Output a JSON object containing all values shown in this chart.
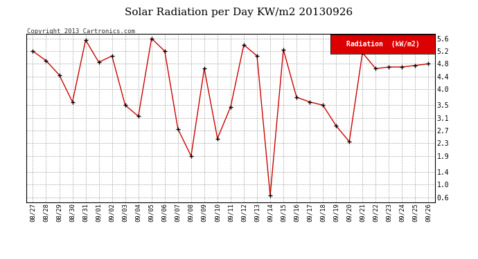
{
  "title": "Solar Radiation per Day KW/m2 20130926",
  "copyright": "Copyright 2013 Cartronics.com",
  "legend_label": "Radiation  (kW/m2)",
  "dates": [
    "08/27",
    "08/28",
    "08/29",
    "08/30",
    "08/31",
    "09/01",
    "09/02",
    "09/03",
    "09/04",
    "09/05",
    "09/06",
    "09/07",
    "09/08",
    "09/09",
    "09/10",
    "09/11",
    "09/12",
    "09/13",
    "09/14",
    "09/15",
    "09/16",
    "09/17",
    "09/18",
    "09/19",
    "09/20",
    "09/21",
    "09/22",
    "09/23",
    "09/24",
    "09/25",
    "09/26"
  ],
  "values": [
    5.2,
    4.9,
    4.45,
    3.6,
    5.55,
    4.85,
    5.05,
    3.5,
    3.15,
    5.6,
    5.2,
    2.75,
    1.9,
    4.65,
    2.45,
    3.45,
    5.4,
    5.05,
    0.65,
    5.25,
    3.75,
    3.6,
    3.5,
    2.85,
    2.35,
    5.15,
    4.65,
    4.7,
    4.7,
    4.75,
    4.8
  ],
  "line_color": "#cc0000",
  "marker_color": "#000000",
  "bg_color": "#ffffff",
  "plot_bg_color": "#ffffff",
  "grid_color": "#aaaaaa",
  "legend_bg": "#dd0000",
  "legend_text_color": "#ffffff",
  "ylim_min": 0.45,
  "ylim_max": 5.75,
  "yticks": [
    0.6,
    1.0,
    1.4,
    1.9,
    2.3,
    2.7,
    3.1,
    3.5,
    4.0,
    4.4,
    4.8,
    5.2,
    5.6
  ]
}
